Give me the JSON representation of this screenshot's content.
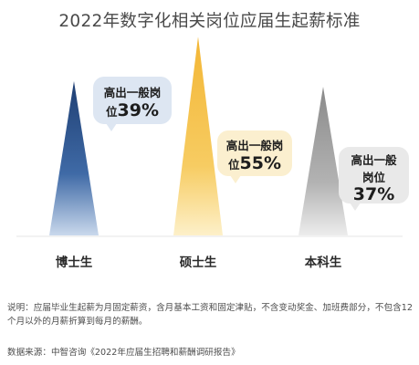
{
  "chart_data": {
    "type": "bar",
    "title": "2022年数字化相关岗位应届生起薪标准",
    "categories": [
      "博士生",
      "硕士生",
      "本科生"
    ],
    "values": [
      39,
      55,
      37
    ],
    "value_unit": "%",
    "labels": [
      {
        "line1": "高出一般岗",
        "line2_prefix": "位",
        "value": "39%"
      },
      {
        "line1": "高出一般岗",
        "line2_prefix": "位",
        "value": "55%"
      },
      {
        "line1": "高出一般",
        "line2_prefix": "岗位",
        "value": "37%"
      }
    ],
    "colors": {
      "phd_top": "#1f3f73",
      "phd_bottom": "#b8cbe3",
      "master_top": "#f3b635",
      "master_bottom": "#fbe7b6",
      "bachelor_top": "#8e8e8e",
      "bachelor_bottom": "#e3e3e3",
      "callout_blue": "#dde6f2",
      "callout_yellow": "#fbefcf",
      "callout_gray": "#e9e9e9"
    }
  },
  "note": "说明：应届毕业生起薪为月固定薪资，含月基本工资和固定津贴，不含变动奖金、加班费部分，不包含12个月以外的月薪折算到每月的薪酬。",
  "source": "数据来源：中智咨询《2022年应届生招聘和薪酬调研报告》"
}
